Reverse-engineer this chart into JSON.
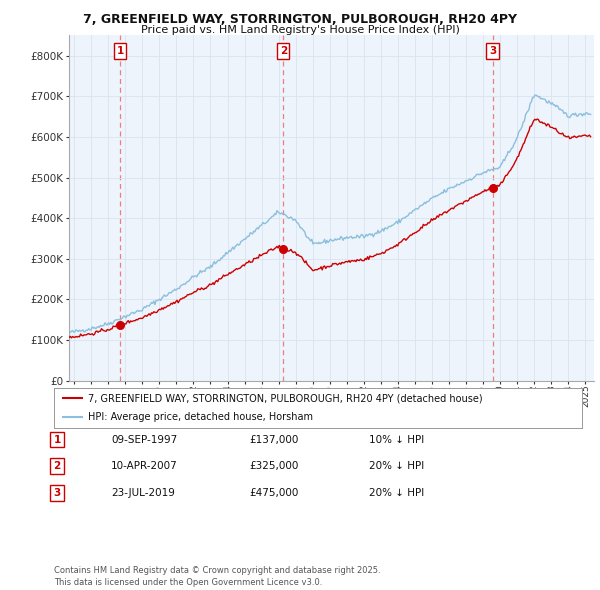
{
  "title1": "7, GREENFIELD WAY, STORRINGTON, PULBOROUGH, RH20 4PY",
  "title2": "Price paid vs. HM Land Registry's House Price Index (HPI)",
  "ylim": [
    0,
    850000
  ],
  "yticks": [
    0,
    100000,
    200000,
    300000,
    400000,
    500000,
    600000,
    700000,
    800000
  ],
  "ytick_labels": [
    "£0",
    "£100K",
    "£200K",
    "£300K",
    "£400K",
    "£500K",
    "£600K",
    "£700K",
    "£800K"
  ],
  "xlim_start": 1994.7,
  "xlim_end": 2025.5,
  "sale_dates": [
    1997.69,
    2007.27,
    2019.55
  ],
  "sale_prices": [
    137000,
    325000,
    475000
  ],
  "sale_labels": [
    "1",
    "2",
    "3"
  ],
  "hpi_color": "#8bbfdd",
  "price_color": "#cc0000",
  "dashed_color": "#e88080",
  "legend_line1": "7, GREENFIELD WAY, STORRINGTON, PULBOROUGH, RH20 4PY (detached house)",
  "legend_line2": "HPI: Average price, detached house, Horsham",
  "table_entries": [
    {
      "num": "1",
      "date": "09-SEP-1997",
      "price": "£137,000",
      "rel": "10% ↓ HPI"
    },
    {
      "num": "2",
      "date": "10-APR-2007",
      "price": "£325,000",
      "rel": "20% ↓ HPI"
    },
    {
      "num": "3",
      "date": "23-JUL-2019",
      "price": "£475,000",
      "rel": "20% ↓ HPI"
    }
  ],
  "footer": "Contains HM Land Registry data © Crown copyright and database right 2025.\nThis data is licensed under the Open Government Licence v3.0.",
  "background_color": "#ffffff",
  "grid_color": "#d8e4f0",
  "chart_bg": "#eef4fb"
}
